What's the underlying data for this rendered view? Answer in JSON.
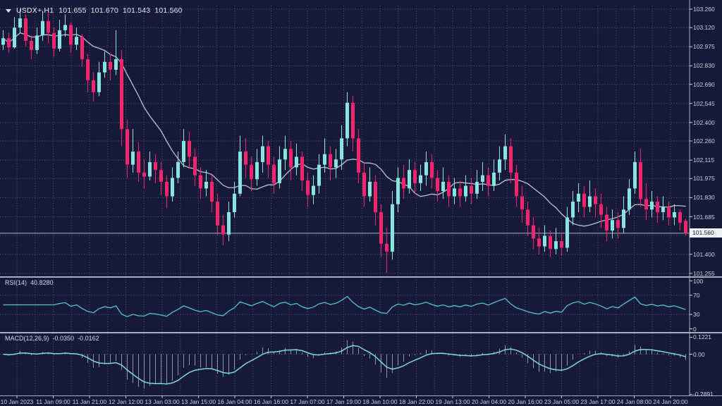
{
  "header": {
    "symbol": "USDX+,H1",
    "open": "101.655",
    "high": "101.670",
    "low": "101.543",
    "close": "101.560"
  },
  "panels": {
    "rsi": {
      "label": "RSI(14)",
      "value": "40.8280",
      "levels": [
        "100",
        "70",
        "30",
        "0"
      ],
      "level_values": [
        100,
        70,
        30,
        0
      ],
      "dashed_levels": [
        70,
        30
      ]
    },
    "macd": {
      "label": "MACD(12,26,9)",
      "value_macd": "-0.0350",
      "value_signal": "-0.0162",
      "levels": [
        "0.1221",
        "0.00",
        "-0.2891"
      ],
      "level_values": [
        0.1221,
        0,
        -0.2891
      ]
    }
  },
  "colors": {
    "background": "#161a38",
    "bull": "#8BE3DF",
    "bear": "#F2256E",
    "ma_line": "#c6cad6",
    "rsi_line": "#4fc3d4",
    "macd_signal": "#7adbd8",
    "macd_hist": "#a2aac4",
    "grid": "#5b6288",
    "axis_text": "#ccd1de",
    "separator": "#a8adc0",
    "price_tag_bg": "#eef0f4",
    "price_tag_text": "#14183a",
    "bid_line": "#c8cdd8"
  },
  "chart_data": {
    "type": "candlestick",
    "title": "USDX+,H1",
    "current_price": 101.56,
    "y_labels": [
      "103.260",
      "103.120",
      "102.975",
      "102.830",
      "102.690",
      "102.545",
      "102.400",
      "102.260",
      "102.115",
      "101.975",
      "101.830",
      "101.685",
      "101.545",
      "101.400",
      "101.255"
    ],
    "y_range": [
      101.255,
      103.26
    ],
    "x_labels": [
      "10 Jan 2023",
      "11 Jan 09:00",
      "11 Jan 21:00",
      "12 Jan 12:00",
      "13 Jan 03:00",
      "13 Jan 15:00",
      "16 Jan 04:00",
      "16 Jan 16:00",
      "17 Jan 07:00",
      "17 Jan 19:00",
      "18 Jan 10:00",
      "18 Jan 22:00",
      "19 Jan 13:00",
      "20 Jan 04:00",
      "20 Jan 16:00",
      "23 Jan 05:00",
      "23 Jan 17:00",
      "24 Jan 08:00",
      "24 Jan 20:00"
    ],
    "last_ohlc": {
      "open": 101.655,
      "high": 101.67,
      "low": 101.543,
      "close": 101.56
    },
    "candles": [
      [
        102.99,
        103.1,
        102.95,
        103.04
      ],
      [
        103.04,
        103.08,
        102.93,
        102.97
      ],
      [
        102.97,
        103.2,
        102.96,
        103.12
      ],
      [
        103.12,
        103.26,
        103.08,
        103.19
      ],
      [
        103.19,
        103.22,
        102.98,
        103.02
      ],
      [
        103.02,
        103.06,
        102.88,
        102.95
      ],
      [
        102.95,
        103.12,
        102.92,
        103.06
      ],
      [
        103.06,
        103.25,
        103.02,
        103.17
      ],
      [
        103.17,
        103.23,
        103.0,
        103.08
      ],
      [
        103.08,
        103.12,
        102.9,
        102.96
      ],
      [
        102.96,
        103.18,
        102.94,
        103.1
      ],
      [
        103.1,
        103.22,
        103.05,
        103.14
      ],
      [
        103.14,
        103.16,
        102.93,
        102.99
      ],
      [
        102.99,
        103.12,
        102.95,
        103.05
      ],
      [
        103.05,
        103.07,
        102.82,
        102.88
      ],
      [
        102.88,
        102.92,
        102.63,
        102.72
      ],
      [
        102.72,
        102.78,
        102.56,
        102.63
      ],
      [
        102.63,
        102.86,
        102.6,
        102.78
      ],
      [
        102.78,
        102.94,
        102.74,
        102.86
      ],
      [
        102.86,
        102.92,
        102.72,
        102.8
      ],
      [
        102.8,
        103.1,
        102.76,
        102.88
      ],
      [
        102.88,
        102.95,
        102.22,
        102.35
      ],
      [
        102.35,
        102.42,
        101.98,
        102.08
      ],
      [
        102.08,
        102.35,
        102.02,
        102.18
      ],
      [
        102.18,
        102.25,
        101.95,
        102.02
      ],
      [
        102.02,
        102.12,
        101.9,
        101.99
      ],
      [
        101.99,
        102.18,
        101.96,
        102.1
      ],
      [
        102.1,
        102.16,
        101.94,
        102.04
      ],
      [
        102.04,
        102.1,
        101.85,
        101.95
      ],
      [
        101.95,
        102.0,
        101.75,
        101.84
      ],
      [
        101.84,
        102.06,
        101.8,
        101.98
      ],
      [
        101.98,
        102.18,
        101.94,
        102.1
      ],
      [
        102.1,
        102.35,
        102.06,
        102.26
      ],
      [
        102.26,
        102.33,
        102.05,
        102.14
      ],
      [
        102.14,
        102.2,
        101.92,
        102.0
      ],
      [
        102.0,
        102.06,
        101.82,
        101.9
      ],
      [
        101.9,
        102.04,
        101.84,
        101.95
      ],
      [
        101.95,
        102.0,
        101.72,
        101.8
      ],
      [
        101.8,
        101.86,
        101.55,
        101.62
      ],
      [
        101.62,
        101.7,
        101.47,
        101.55
      ],
      [
        101.55,
        101.8,
        101.5,
        101.72
      ],
      [
        101.72,
        101.95,
        101.68,
        101.86
      ],
      [
        101.86,
        102.3,
        101.84,
        102.18
      ],
      [
        102.18,
        102.28,
        101.98,
        102.08
      ],
      [
        102.08,
        102.14,
        101.88,
        101.97
      ],
      [
        101.97,
        102.2,
        101.92,
        102.1
      ],
      [
        102.1,
        102.3,
        102.02,
        102.22
      ],
      [
        102.22,
        102.26,
        101.98,
        102.08
      ],
      [
        102.08,
        102.14,
        101.86,
        101.94
      ],
      [
        101.94,
        102.22,
        101.9,
        102.12
      ],
      [
        102.12,
        102.3,
        102.04,
        102.2
      ],
      [
        102.2,
        102.26,
        101.96,
        102.06
      ],
      [
        102.06,
        102.24,
        102.0,
        102.14
      ],
      [
        102.14,
        102.18,
        101.88,
        101.96
      ],
      [
        101.96,
        102.02,
        101.76,
        101.85
      ],
      [
        101.85,
        102.0,
        101.78,
        101.92
      ],
      [
        101.92,
        102.16,
        101.86,
        102.08
      ],
      [
        102.08,
        102.28,
        102.02,
        102.16
      ],
      [
        102.16,
        102.22,
        101.96,
        102.06
      ],
      [
        102.06,
        102.2,
        101.98,
        102.12
      ],
      [
        102.12,
        102.38,
        102.04,
        102.28
      ],
      [
        102.28,
        102.63,
        102.22,
        102.55
      ],
      [
        102.55,
        102.6,
        102.18,
        102.28
      ],
      [
        102.28,
        102.35,
        101.94,
        102.02
      ],
      [
        102.02,
        102.1,
        101.76,
        101.84
      ],
      [
        101.84,
        102.06,
        101.8,
        101.95
      ],
      [
        101.95,
        102.0,
        101.62,
        101.72
      ],
      [
        101.72,
        101.78,
        101.38,
        101.48
      ],
      [
        101.48,
        101.6,
        101.26,
        101.42
      ],
      [
        101.42,
        101.88,
        101.36,
        101.78
      ],
      [
        101.78,
        102.06,
        101.72,
        101.98
      ],
      [
        101.98,
        102.08,
        101.82,
        101.9
      ],
      [
        101.9,
        102.12,
        101.86,
        102.04
      ],
      [
        102.04,
        102.1,
        101.86,
        101.94
      ],
      [
        101.94,
        102.08,
        101.88,
        102.0
      ],
      [
        102.0,
        102.18,
        101.92,
        102.1
      ],
      [
        102.1,
        102.16,
        101.9,
        101.98
      ],
      [
        101.98,
        102.04,
        101.8,
        101.88
      ],
      [
        101.88,
        102.06,
        101.82,
        101.95
      ],
      [
        101.95,
        102.0,
        101.76,
        101.84
      ],
      [
        101.84,
        101.98,
        101.78,
        101.9
      ],
      [
        101.9,
        101.96,
        101.76,
        101.84
      ],
      [
        101.84,
        102.0,
        101.8,
        101.92
      ],
      [
        101.92,
        101.98,
        101.78,
        101.86
      ],
      [
        101.86,
        102.04,
        101.82,
        101.95
      ],
      [
        101.95,
        102.1,
        101.88,
        102.0
      ],
      [
        102.0,
        102.06,
        101.84,
        101.92
      ],
      [
        101.92,
        102.12,
        101.88,
        102.02
      ],
      [
        102.02,
        102.22,
        101.96,
        102.12
      ],
      [
        102.12,
        102.31,
        102.04,
        102.22
      ],
      [
        102.22,
        102.28,
        101.94,
        102.02
      ],
      [
        102.02,
        102.08,
        101.76,
        101.84
      ],
      [
        101.84,
        101.92,
        101.64,
        101.74
      ],
      [
        101.74,
        101.8,
        101.54,
        101.62
      ],
      [
        101.62,
        101.68,
        101.44,
        101.52
      ],
      [
        101.52,
        101.6,
        101.4,
        101.46
      ],
      [
        101.46,
        101.62,
        101.42,
        101.54
      ],
      [
        101.54,
        101.58,
        101.38,
        101.44
      ],
      [
        101.44,
        101.6,
        101.4,
        101.5
      ],
      [
        101.5,
        101.56,
        101.39,
        101.45
      ],
      [
        101.45,
        101.76,
        101.42,
        101.68
      ],
      [
        101.68,
        101.88,
        101.62,
        101.8
      ],
      [
        101.8,
        101.94,
        101.72,
        101.86
      ],
      [
        101.86,
        101.92,
        101.68,
        101.76
      ],
      [
        101.76,
        101.96,
        101.72,
        101.84
      ],
      [
        101.84,
        101.9,
        101.68,
        101.78
      ],
      [
        101.78,
        101.86,
        101.6,
        101.7
      ],
      [
        101.7,
        101.76,
        101.5,
        101.58
      ],
      [
        101.58,
        101.74,
        101.52,
        101.66
      ],
      [
        101.66,
        101.72,
        101.52,
        101.6
      ],
      [
        101.6,
        101.84,
        101.56,
        101.74
      ],
      [
        101.74,
        101.97,
        101.7,
        101.9
      ],
      [
        101.9,
        102.18,
        101.86,
        102.1
      ],
      [
        102.1,
        102.2,
        101.76,
        101.82
      ],
      [
        101.82,
        101.94,
        101.66,
        101.74
      ],
      [
        101.74,
        101.88,
        101.68,
        101.8
      ],
      [
        101.8,
        101.84,
        101.64,
        101.72
      ],
      [
        101.72,
        101.84,
        101.66,
        101.76
      ],
      [
        101.76,
        101.8,
        101.62,
        101.68
      ],
      [
        101.68,
        101.78,
        101.62,
        101.72
      ],
      [
        101.72,
        101.74,
        101.58,
        101.64
      ],
      [
        101.655,
        101.67,
        101.543,
        101.56
      ]
    ],
    "indicators": [
      {
        "name": "RSI",
        "params": "14",
        "displayed_value": 40.828,
        "range": [
          0,
          100
        ],
        "marked_levels": [
          70,
          30
        ]
      },
      {
        "name": "MACD",
        "params": "12,26,9",
        "displayed_values": [
          -0.035,
          -0.0162
        ],
        "range": [
          -0.2891,
          0.1221
        ]
      }
    ]
  }
}
